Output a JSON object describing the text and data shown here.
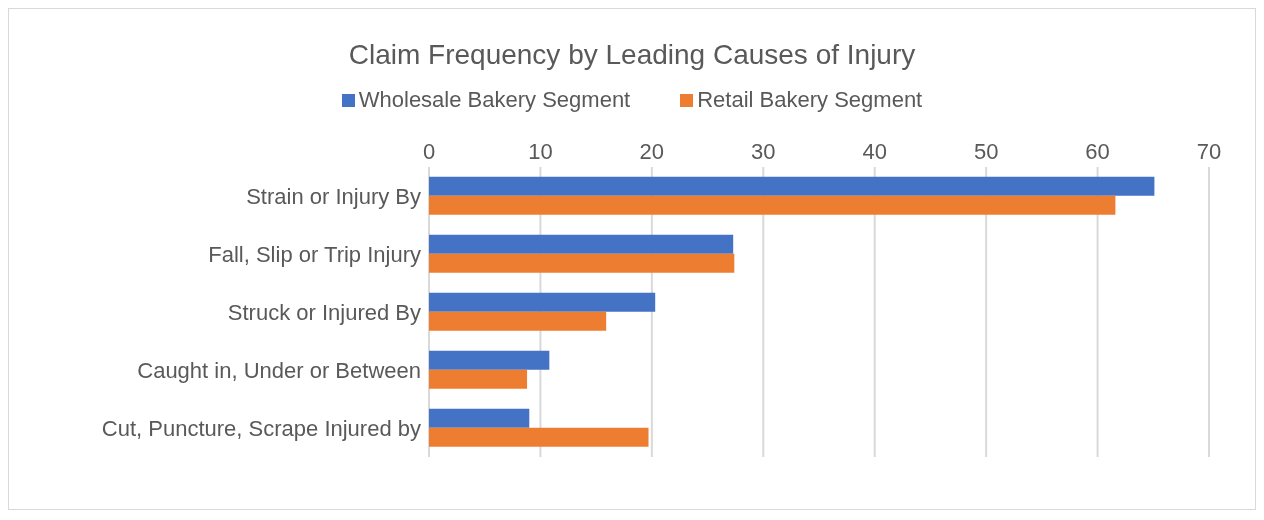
{
  "chart_data": {
    "type": "bar",
    "orientation": "horizontal",
    "title": "Claim Frequency by Leading Causes of Injury",
    "categories": [
      "Strain or Injury By",
      "Fall, Slip or Trip Injury",
      "Struck or Injured By",
      "Caught in, Under or Between",
      "Cut, Puncture, Scrape Injured by"
    ],
    "series": [
      {
        "name": "Wholesale Bakery Segment",
        "color": "#4472c4",
        "values": [
          65.1,
          27.3,
          20.3,
          10.8,
          9.0
        ]
      },
      {
        "name": "Retail Bakery Segment",
        "color": "#ed7d31",
        "values": [
          61.6,
          27.4,
          15.9,
          8.8,
          19.7
        ]
      }
    ],
    "xlim": [
      0,
      70
    ],
    "xticks": [
      0,
      10,
      20,
      30,
      40,
      50,
      60,
      70
    ],
    "grid": "x",
    "legend": "top"
  }
}
